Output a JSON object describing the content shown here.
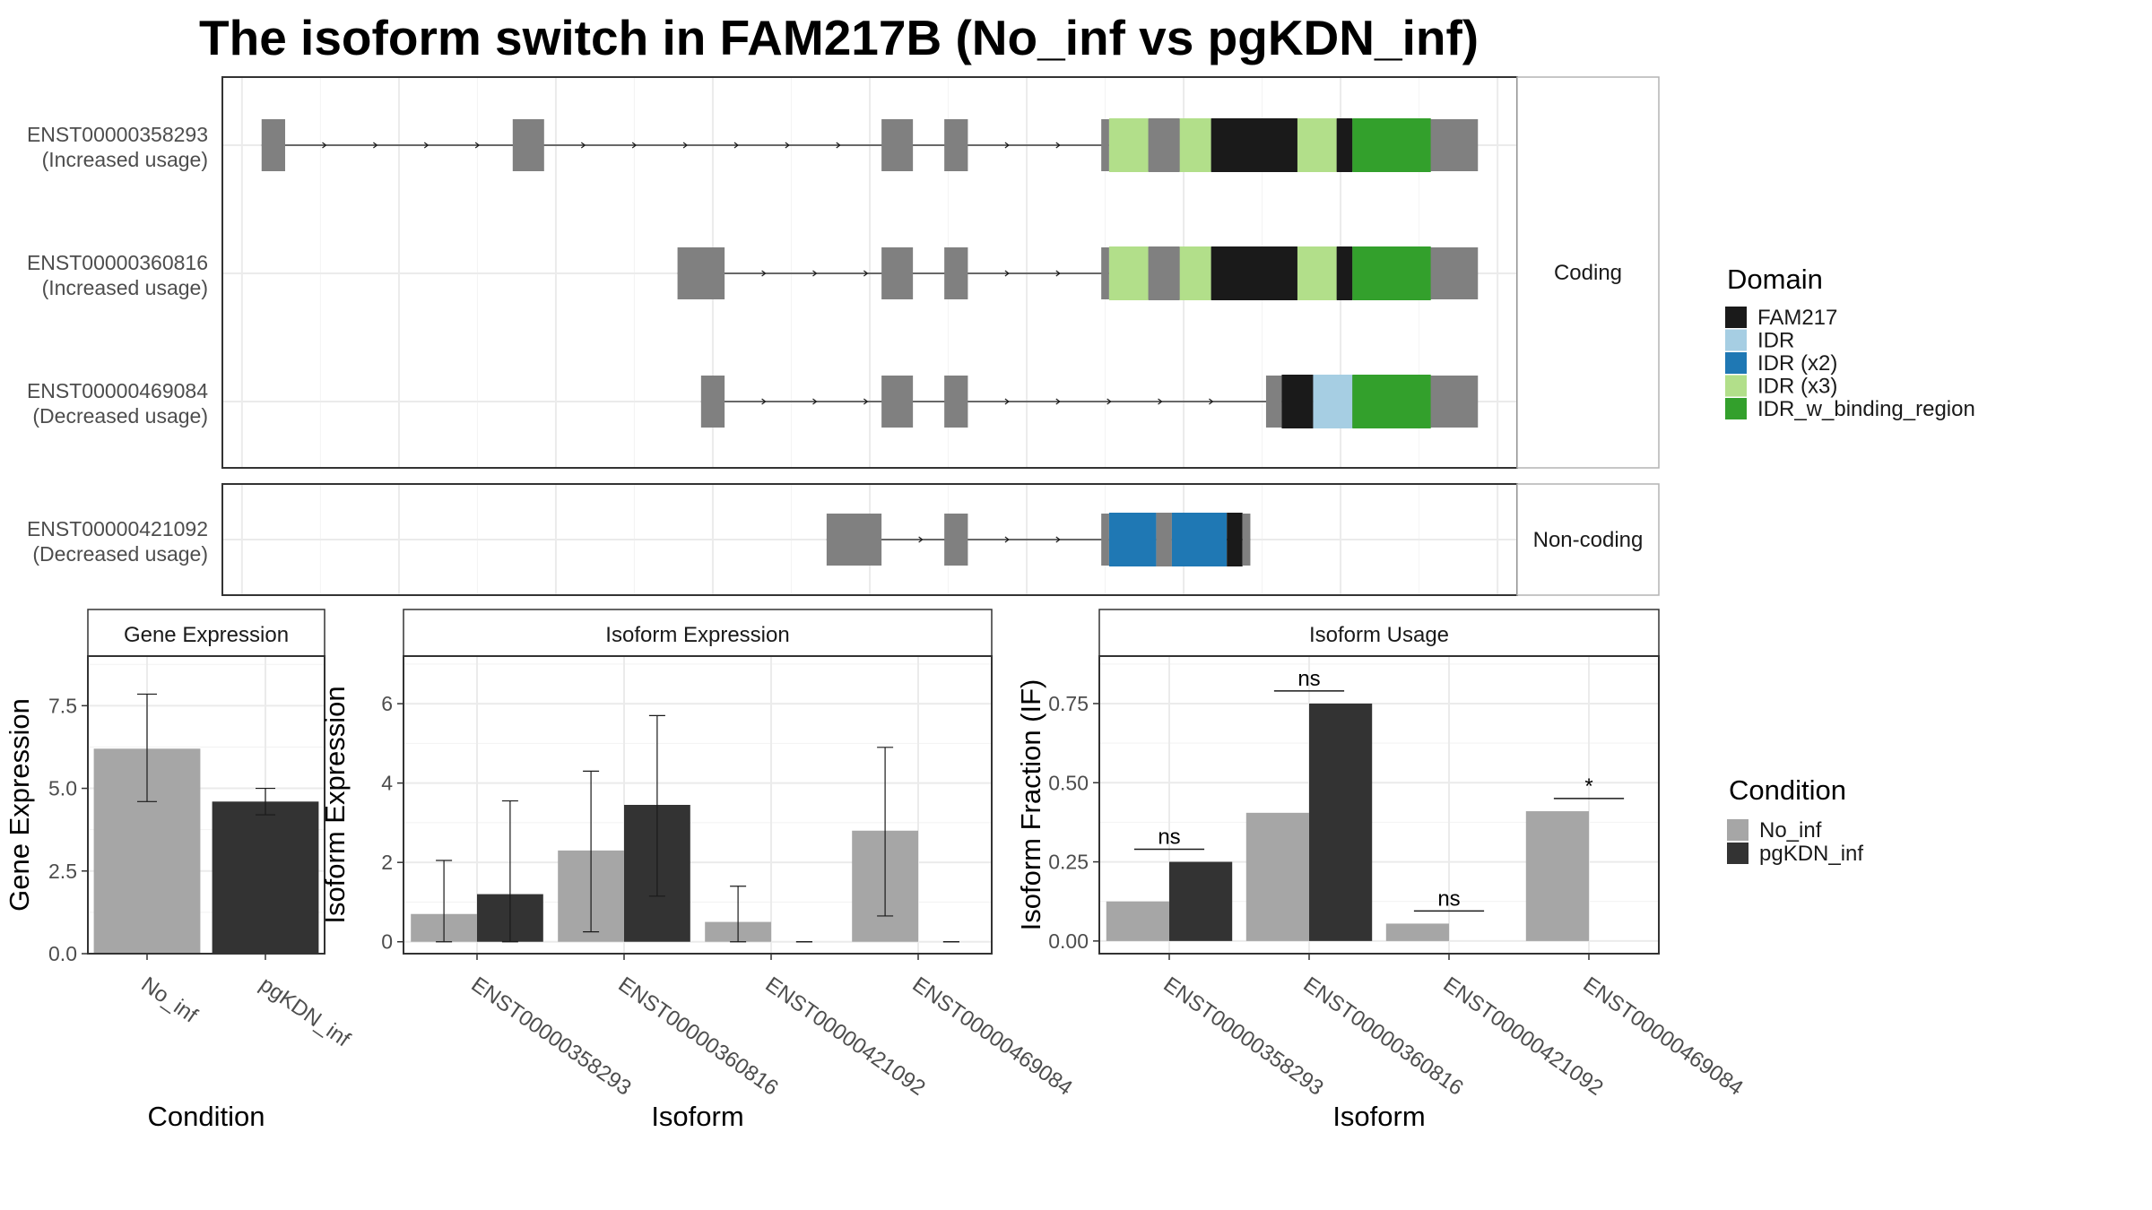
{
  "title": "The isoform switch in FAM217B (No_inf vs pgKDN_inf)",
  "colors": {
    "No_inf": "#a6a6a6",
    "pgKDN_inf": "#333333",
    "exon": "#808080",
    "FAM217": "#1a1a1a",
    "IDR": "#a6cee3",
    "IDR (x2)": "#1f78b4",
    "IDR (x3)": "#b2df8a",
    "IDR_w_binding_region": "#33a02c"
  },
  "structure": {
    "coding_label": "Coding",
    "noncoding_label": "Non-coding",
    "tracks": [
      {
        "id": "ENST00000358293",
        "status": "(Increased usage)",
        "group": "coding",
        "exons": [
          [
            5,
            8
          ],
          [
            37,
            41
          ],
          [
            84,
            88
          ],
          [
            92,
            95
          ]
        ],
        "utr3": [
          116,
          160
        ],
        "cds": [
          [
            112,
            113
          ],
          [
            113,
            118,
            "IDR (x3)"
          ],
          [
            118,
            122,
            "exon"
          ],
          [
            122,
            126,
            "IDR (x3)"
          ],
          [
            126,
            137,
            "FAM217"
          ],
          [
            137,
            142,
            "IDR (x3)"
          ],
          [
            142,
            144,
            "FAM217"
          ],
          [
            144,
            154,
            "IDR_w_binding_region"
          ],
          [
            154,
            155
          ]
        ]
      },
      {
        "id": "ENST00000360816",
        "status": "(Increased usage)",
        "group": "coding",
        "exons": [
          [
            58,
            64
          ],
          [
            84,
            88
          ],
          [
            92,
            95
          ]
        ],
        "utr3": [
          116,
          160
        ],
        "cds": [
          [
            112,
            113
          ],
          [
            113,
            118,
            "IDR (x3)"
          ],
          [
            118,
            122,
            "exon"
          ],
          [
            122,
            126,
            "IDR (x3)"
          ],
          [
            126,
            137,
            "FAM217"
          ],
          [
            137,
            142,
            "IDR (x3)"
          ],
          [
            142,
            144,
            "FAM217"
          ],
          [
            144,
            154,
            "IDR_w_binding_region"
          ],
          [
            154,
            155
          ]
        ]
      },
      {
        "id": "ENST00000469084",
        "status": "(Decreased usage)",
        "group": "coding",
        "exons": [
          [
            61,
            64
          ],
          [
            84,
            88
          ],
          [
            92,
            95
          ]
        ],
        "utr3": [
          140,
          160
        ],
        "cds": [
          [
            133,
            135
          ],
          [
            135,
            139,
            "FAM217"
          ],
          [
            139,
            144,
            "IDR"
          ],
          [
            144,
            154,
            "IDR_w_binding_region"
          ],
          [
            154,
            155
          ]
        ]
      },
      {
        "id": "ENST00000421092",
        "status": "(Decreased usage)",
        "group": "noncoding",
        "exons": [
          [
            77,
            84
          ],
          [
            92,
            95
          ]
        ],
        "utr3": [],
        "cds": [
          [
            112,
            113
          ],
          [
            113,
            119,
            "IDR (x2)"
          ],
          [
            119,
            121,
            "exon"
          ],
          [
            121,
            128,
            "IDR (x2)"
          ],
          [
            128,
            130,
            "FAM217"
          ],
          [
            130,
            131
          ]
        ]
      }
    ]
  },
  "legend_domain": {
    "title": "Domain",
    "items": [
      "FAM217",
      "IDR",
      "IDR (x2)",
      "IDR (x3)",
      "IDR_w_binding_region"
    ]
  },
  "legend_condition": {
    "title": "Condition",
    "items": [
      "No_inf",
      "pgKDN_inf"
    ]
  },
  "chart_data": [
    {
      "type": "bar",
      "strip": "Gene Expression",
      "xlabel": "Condition",
      "ylabel": "Gene Expression",
      "ylim": [
        0,
        9
      ],
      "yticks": [
        0.0,
        2.5,
        5.0,
        7.5
      ],
      "yticklabels": [
        "0.0",
        "2.5",
        "5.0",
        "7.5"
      ],
      "categories": [
        "No_inf",
        "pgKDN_inf"
      ],
      "values": [
        6.2,
        4.6
      ],
      "err_low": [
        4.6,
        4.2
      ],
      "err_high": [
        7.85,
        5.0
      ]
    },
    {
      "type": "bar",
      "strip": "Isoform Expression",
      "xlabel": "Isoform",
      "ylabel": "Isoform Expression",
      "ylim": [
        -0.3,
        7.2
      ],
      "yticks": [
        0,
        2,
        4,
        6
      ],
      "yticklabels": [
        "0",
        "2",
        "4",
        "6"
      ],
      "categories": [
        "ENST00000358293",
        "ENST00000360816",
        "ENST00000421092",
        "ENST00000469084"
      ],
      "series": [
        {
          "name": "No_inf",
          "values": [
            0.7,
            2.3,
            0.5,
            2.8
          ],
          "err_low": [
            0.0,
            0.25,
            0.0,
            0.65
          ],
          "err_high": [
            2.05,
            4.3,
            1.4,
            4.9
          ]
        },
        {
          "name": "pgKDN_inf",
          "values": [
            1.2,
            3.45,
            0.0,
            0.0
          ],
          "err_low": [
            0.0,
            1.15,
            0.0,
            0.0
          ],
          "err_high": [
            3.55,
            5.7,
            0.0,
            0.0
          ]
        }
      ]
    },
    {
      "type": "bar",
      "strip": "Isoform Usage",
      "xlabel": "Isoform",
      "ylabel": "Isoform Fraction (IF)",
      "ylim": [
        -0.04,
        0.9
      ],
      "yticks": [
        0.0,
        0.25,
        0.5,
        0.75
      ],
      "yticklabels": [
        "0.00",
        "0.25",
        "0.50",
        "0.75"
      ],
      "categories": [
        "ENST00000358293",
        "ENST00000360816",
        "ENST00000421092",
        "ENST00000469084"
      ],
      "series": [
        {
          "name": "No_inf",
          "values": [
            0.125,
            0.405,
            0.055,
            0.41
          ]
        },
        {
          "name": "pgKDN_inf",
          "values": [
            0.25,
            0.75,
            0.0,
            0.0
          ]
        }
      ],
      "significance": [
        "ns",
        "ns",
        "ns",
        "*"
      ],
      "significance_y": [
        0.29,
        0.79,
        0.095,
        0.45
      ]
    }
  ]
}
